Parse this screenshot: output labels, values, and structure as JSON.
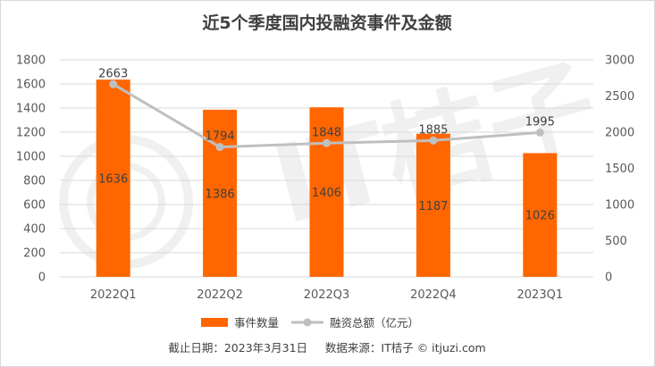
{
  "chart_data": {
    "type": "bar",
    "title": "近5个季度国内投融资事件及金额",
    "categories": [
      "2022Q1",
      "2022Q2",
      "2022Q3",
      "2022Q4",
      "2023Q1"
    ],
    "series": [
      {
        "name": "事件数量",
        "type": "bar",
        "axis": "left",
        "values": [
          1636,
          1386,
          1406,
          1187,
          1026
        ],
        "color": "#FF6600"
      },
      {
        "name": "融资总额（亿元）",
        "type": "line",
        "axis": "right",
        "values": [
          2663,
          1794,
          1848,
          1885,
          1995
        ],
        "color": "#BFBFBF"
      }
    ],
    "left_axis": {
      "ylim": [
        0,
        1800
      ],
      "ticks": [
        0,
        200,
        400,
        600,
        800,
        1000,
        1200,
        1400,
        1600,
        1800
      ]
    },
    "right_axis": {
      "ylim": [
        0,
        3000
      ],
      "ticks": [
        0,
        500,
        1000,
        1500,
        2000,
        2500,
        3000
      ]
    },
    "grid": true,
    "legend_position": "bottom",
    "footer": "截止日期：2023年3月31日     数据来源：IT桔子 © itjuzi.com",
    "watermark": "IT桔子 ITJUZI.COM"
  }
}
